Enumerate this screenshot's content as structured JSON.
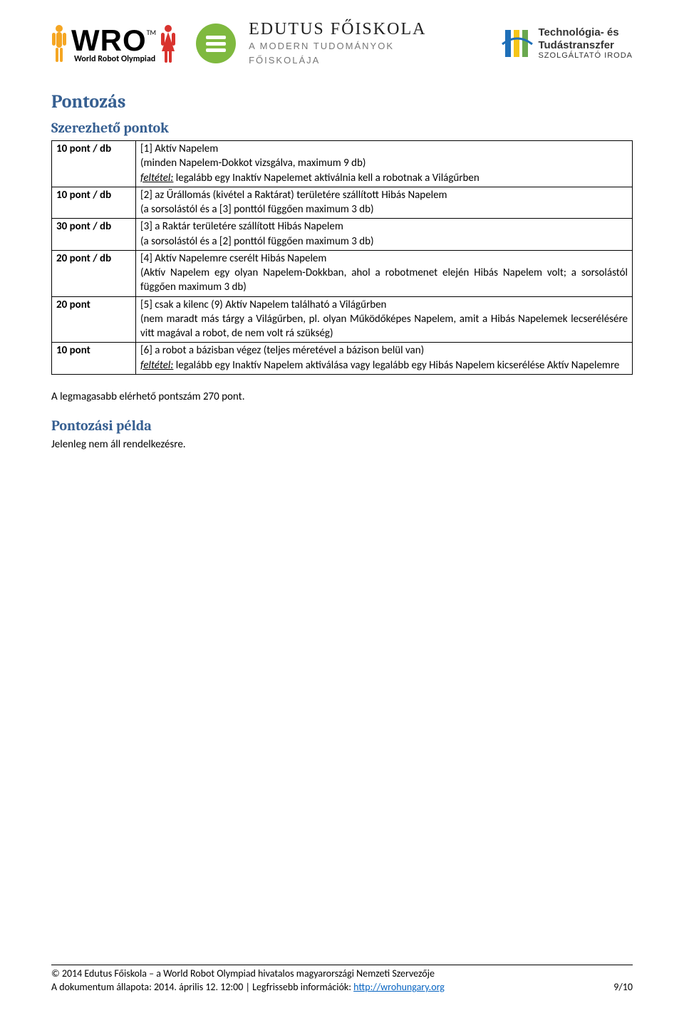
{
  "header": {
    "wro_big": "WRO",
    "wro_tm": "TM",
    "wro_sub": "World Robot Olympiad",
    "edutus_title": "EDUTUS FŐISKOLA",
    "edutus_sub1": "A MODERN TUDOMÁNYOK",
    "edutus_sub2": "FŐISKOLÁJA",
    "tti_line1": "Technológia- és",
    "tti_line2": "Tudástranszfer",
    "tti_line3": "SZOLGÁLTATÓ IRODA"
  },
  "h1": "Pontozás",
  "h2a": "Szerezhető pontok",
  "rows": [
    {
      "pts": "10 pont / db",
      "desc_pre": "[1] Aktív Napelem\n(minden Napelem-Dokkot vizsgálva, maximum 9 db)\n",
      "cond_label": "feltétel:",
      "cond_text": " legalább egy Inaktív Napelemet aktiválnia kell a robotnak a Világűrben"
    },
    {
      "pts": "10 pont / db",
      "desc": "[2] az Űrállomás (kivétel a Raktárat) területére szállított Hibás Napelem\n(a sorsolástól és a [3] ponttól függően maximum 3 db)"
    },
    {
      "pts": "30 pont / db",
      "desc": "[3] a Raktár területére szállított Hibás Napelem\n(a sorsolástól és a [2] ponttól függően maximum 3 db)"
    },
    {
      "pts": "20 pont / db",
      "desc": "[4] Aktív Napelemre cserélt Hibás Napelem\n(Aktív Napelem egy olyan Napelem-Dokkban, ahol a robotmenet elején Hibás Napelem volt; a sorsolástól függően maximum 3 db)"
    },
    {
      "pts": "20 pont",
      "desc": "[5] csak a kilenc (9) Aktív Napelem található a Világűrben\n(nem maradt más tárgy a Világűrben, pl. olyan Működőképes Napelem, amit a Hibás Napelemek lecserélésére vitt magával a robot, de nem volt rá szükség)"
    },
    {
      "pts": "10 pont",
      "desc_pre": "[6] a robot a bázisban végez (teljes méretével a bázison belül van)\n",
      "cond_label": "feltétel:",
      "cond_text": " legalább egy Inaktív Napelem aktiválása vagy legalább egy Hibás Napelem kicserélése Aktív Napelemre"
    }
  ],
  "max_line": "A legmagasabb elérhető pontszám 270 pont.",
  "h2b": "Pontozási példa",
  "example_body": "Jelenleg nem áll rendelkezésre.",
  "footer": {
    "line1": "© 2014 Edutus Főiskola – a World Robot Olympiad hivatalos magyarországi Nemzeti Szervezője",
    "line2a": "A dokumentum állapota: 2014. április 12. 12:00 | Legfrissebb információk: ",
    "link": "http://wrohungary.org",
    "page": "9/10"
  }
}
